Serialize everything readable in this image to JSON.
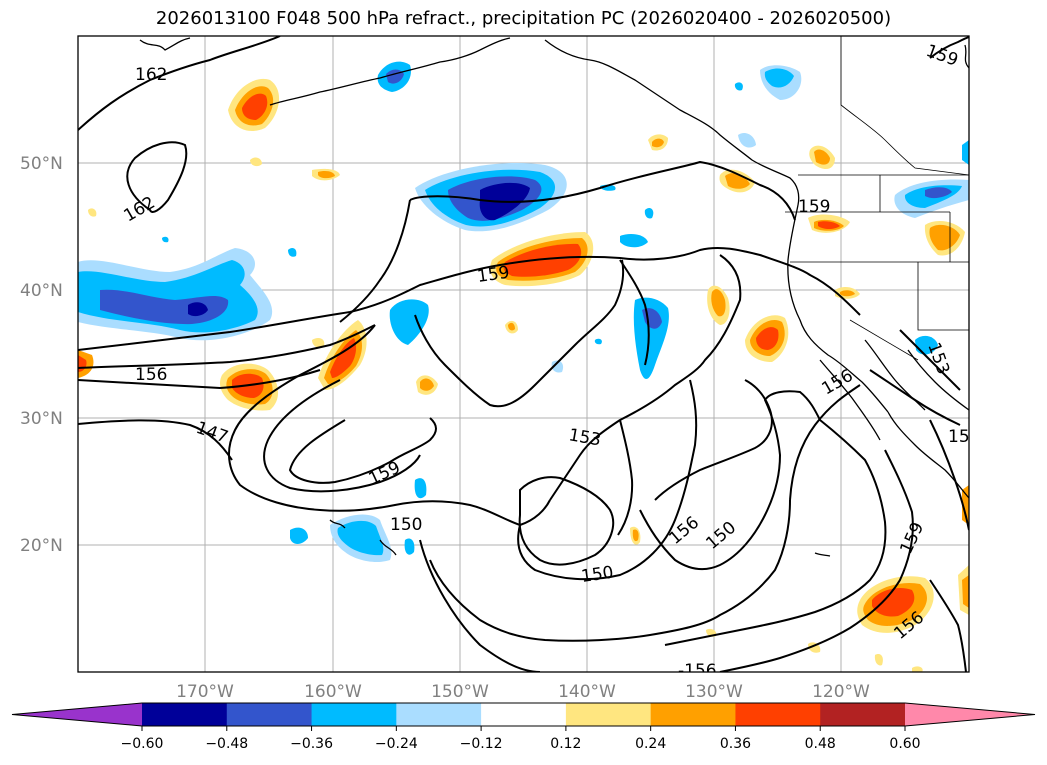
{
  "title": "2026013100 F048 500 hPa refract., precipitation PC (2026020400 - 2026020500)",
  "lat_labels": [
    "50°N",
    "40°N",
    "30°N",
    "20°N"
  ],
  "lon_labels": [
    "170°W",
    "160°W",
    "150°W",
    "140°W",
    "130°W",
    "120°W"
  ],
  "contour_labels": [
    "162",
    "162",
    "159",
    "159",
    "159",
    "156",
    "147",
    "159",
    "153",
    "150",
    "150",
    "156",
    "150",
    "156",
    "159",
    "156",
    "153",
    "15",
    "-156"
  ],
  "colorbar": {
    "ticks": [
      "−0.60",
      "−0.48",
      "−0.36",
      "−0.24",
      "−0.12",
      "0.12",
      "0.24",
      "0.36",
      "0.48",
      "0.60"
    ],
    "colors": [
      "#9933cc",
      "#000099",
      "#3355cc",
      "#00bbff",
      "#aaddff",
      "#ffffff",
      "#ffe680",
      "#ffa000",
      "#ff4000",
      "#b22222",
      "#ff88aa"
    ]
  }
}
